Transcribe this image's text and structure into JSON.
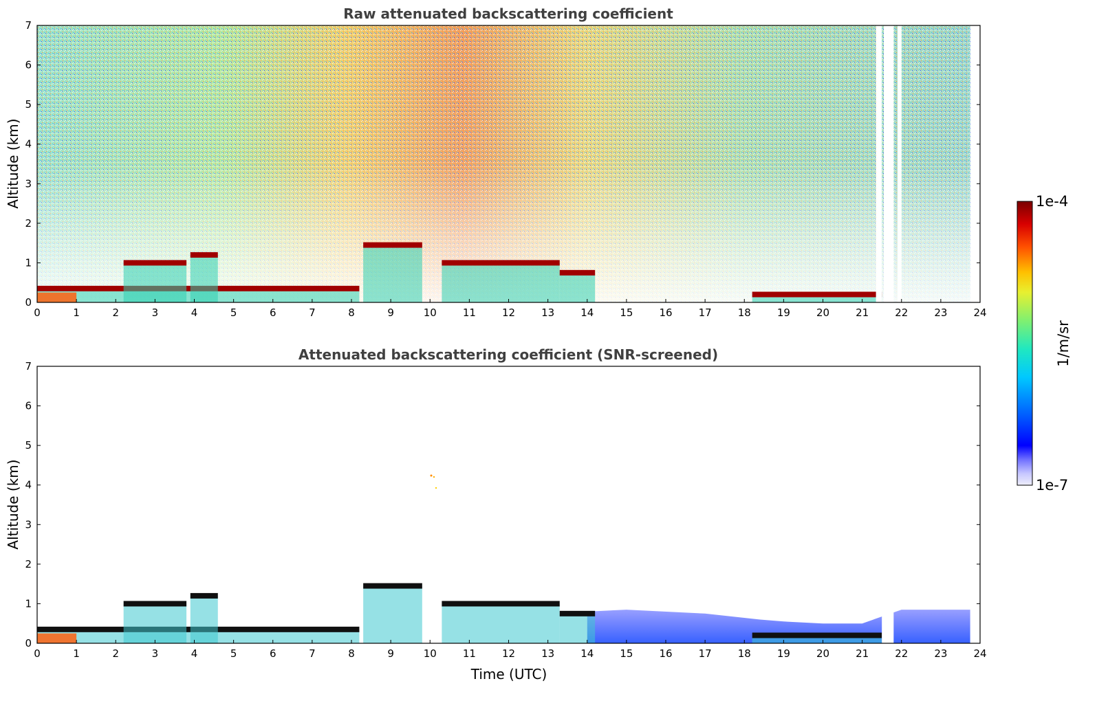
{
  "figure": {
    "colorbar": {
      "max_label": "1e-4",
      "min_label": "1e-7",
      "unit_label": "1/m/sr",
      "colors": [
        "#e8e8f8",
        "#c8c8ff",
        "#8080ff",
        "#0000ff",
        "#0050ff",
        "#00a0ff",
        "#00e0e0",
        "#40f0a0",
        "#a0f060",
        "#f0f030",
        "#ffc000",
        "#ff6000",
        "#e01000",
        "#800000"
      ]
    }
  },
  "chart_data": [
    {
      "type": "heatmap",
      "title": "Raw attenuated backscattering coefficient",
      "xlabel": "",
      "ylabel": "Altitude (km)",
      "xlim": [
        0,
        24
      ],
      "ylim": [
        0,
        7
      ],
      "x_ticks": [
        "0",
        "1",
        "2",
        "3",
        "4",
        "5",
        "6",
        "7",
        "8",
        "9",
        "10",
        "11",
        "12",
        "13",
        "14",
        "15",
        "16",
        "17",
        "18",
        "19",
        "20",
        "21",
        "22",
        "23",
        "24"
      ],
      "y_ticks": [
        "0",
        "1",
        "2",
        "3",
        "4",
        "5",
        "6",
        "7"
      ],
      "colorscale": "log",
      "zlim": [
        1e-07,
        0.0001
      ],
      "data_gaps_hours": [
        [
          21.35,
          21.5
        ],
        [
          21.55,
          21.8
        ],
        [
          21.9,
          22.0
        ],
        [
          23.75,
          24.0
        ]
      ],
      "cloud_layers": [
        {
          "start": 0.0,
          "end": 4.0,
          "altitude_km": 0.35
        },
        {
          "start": 4.0,
          "end": 8.2,
          "altitude_km": 0.35
        },
        {
          "start": 2.2,
          "end": 3.8,
          "altitude_km": 1.0
        },
        {
          "start": 3.9,
          "end": 4.6,
          "altitude_km": 1.2
        },
        {
          "start": 8.3,
          "end": 9.8,
          "altitude_km": 1.45
        },
        {
          "start": 10.3,
          "end": 13.3,
          "altitude_km": 1.0
        },
        {
          "start": 13.3,
          "end": 14.2,
          "altitude_km": 0.75
        },
        {
          "start": 18.2,
          "end": 21.5,
          "altitude_km": 0.2
        }
      ]
    },
    {
      "type": "heatmap",
      "title": "Attenuated backscattering coefficient (SNR-screened)",
      "xlabel": "Time (UTC)",
      "ylabel": "Altitude (km)",
      "xlim": [
        0,
        24
      ],
      "ylim": [
        0,
        7
      ],
      "x_ticks": [
        "0",
        "1",
        "2",
        "3",
        "4",
        "5",
        "6",
        "7",
        "8",
        "9",
        "10",
        "11",
        "12",
        "13",
        "14",
        "15",
        "16",
        "17",
        "18",
        "19",
        "20",
        "21",
        "22",
        "23",
        "24"
      ],
      "y_ticks": [
        "0",
        "1",
        "2",
        "3",
        "4",
        "5",
        "6",
        "7"
      ],
      "colorscale": "log",
      "zlim": [
        1e-07,
        0.0001
      ],
      "data_gaps_hours": [
        [
          21.5,
          21.8
        ],
        [
          23.75,
          24.0
        ]
      ],
      "cloud_layers": [
        {
          "start": 0.0,
          "end": 4.0,
          "altitude_km": 0.35
        },
        {
          "start": 4.0,
          "end": 8.2,
          "altitude_km": 0.35
        },
        {
          "start": 2.2,
          "end": 3.8,
          "altitude_km": 1.0
        },
        {
          "start": 3.9,
          "end": 4.6,
          "altitude_km": 1.2
        },
        {
          "start": 8.3,
          "end": 9.8,
          "altitude_km": 1.45
        },
        {
          "start": 10.3,
          "end": 13.3,
          "altitude_km": 1.0
        },
        {
          "start": 13.3,
          "end": 14.2,
          "altitude_km": 0.75
        },
        {
          "start": 18.2,
          "end": 21.5,
          "altitude_km": 0.2
        }
      ]
    }
  ]
}
